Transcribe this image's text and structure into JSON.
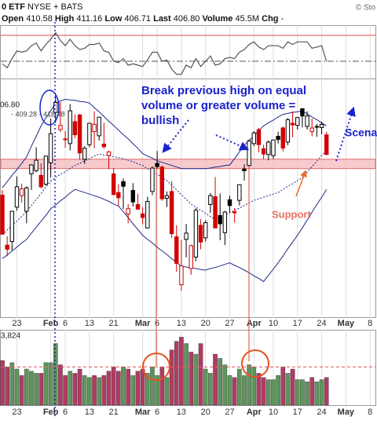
{
  "header": {
    "symbol": "0 ETF",
    "exchange": "NYSE + BATS",
    "copyright": "© Sto",
    "quote": [
      {
        "label": "Open",
        "value": "410.58"
      },
      {
        "label": "High",
        "value": "411.16"
      },
      {
        "label": "Low",
        "value": "406.71"
      },
      {
        "label": "Last",
        "value": "406.80"
      },
      {
        "label": "Volume",
        "value": "45.5M"
      },
      {
        "label": "Chg",
        "value": "-"
      }
    ]
  },
  "chart_data": {
    "type": "candlestick",
    "categories": [
      null,
      null,
      null,
      "23",
      null,
      null,
      null,
      null,
      null,
      null,
      "Feb",
      null,
      null,
      "6",
      null,
      null,
      null,
      null,
      "13",
      null,
      null,
      null,
      null,
      "21",
      null,
      null,
      null,
      null,
      null,
      "Mar",
      null,
      null,
      "6",
      null,
      null,
      null,
      null,
      "13",
      null,
      null,
      null,
      null,
      "20",
      null,
      null,
      null,
      null,
      "27",
      null,
      null,
      null,
      null,
      "Apr",
      null,
      null,
      null,
      "10",
      null,
      null,
      null,
      null,
      "17",
      null,
      null,
      null,
      null,
      "24",
      null,
      null,
      null,
      null,
      "May",
      null,
      null,
      null,
      null,
      "8"
    ],
    "open": [
      399.0,
      389.4,
      390.1,
      396.7,
      398.9,
      395.9,
      403.1,
      403.7,
      402.8,
      401.1,
      405.2,
      414.9,
      411.6,
      409.8,
      408.9,
      413.1,
      414.4,
      405.9,
      408.7,
      411.2,
      410.4,
      408.8,
      406.6,
      403.1,
      399.5,
      401.6,
      395.4,
      399.9,
      397.2,
      395.4,
      392.7,
      399.7,
      405.1,
      404.4,
      398.4,
      399.7,
      390.99,
      381.8,
      390.5,
      384.9,
      387.1,
      393.2,
      390.8,
      397.2,
      398.7,
      395.1,
      391.8,
      398.1,
      395.8,
      398.0,
      404.0,
      404.7,
      408.9,
      411.6,
      407.9,
      406.8,
      406.6,
      410.3,
      411.9,
      409.2,
      412.8,
      412.4,
      415.6,
      412.2,
      411.2,
      412.2,
      411.99,
      410.58,
      null,
      null,
      null,
      null,
      null,
      null,
      null,
      null,
      null
    ],
    "high": [
      400.0,
      391.1,
      396.0,
      402.6,
      401.2,
      400.7,
      404.9,
      408.2,
      405.1,
      406.5,
      413.7,
      418.3,
      416.9,
      411.3,
      416.5,
      414.5,
      414.6,
      408.4,
      412.9,
      415.1,
      414.0,
      412.9,
      407.5,
      404.2,
      401.1,
      402.2,
      397.3,
      401.3,
      399.3,
      396.7,
      398.7,
      404.5,
      407.5,
      404.7,
      399.7,
      401.7,
      393.2,
      390.4,
      393.45,
      389.5,
      396.5,
      394.4,
      394.2,
      399.4,
      402.5,
      399.3,
      396.0,
      398.9,
      396.5,
      401.0,
      404.9,
      409.7,
      411.3,
      411.9,
      408.7,
      409.5,
      409.7,
      411.2,
      412.2,
      413.8,
      415.1,
      414.0,
      415.7,
      415.1,
      413.7,
      412.7,
      413.1,
      411.16,
      null,
      null,
      null,
      null,
      null,
      null,
      null,
      null,
      null
    ],
    "low": [
      391.4,
      387.3,
      388.4,
      396.0,
      397.6,
      393.6,
      400.0,
      403.4,
      400.3,
      400.8,
      402.4,
      412.9,
      411.1,
      408.1,
      407.6,
      409.9,
      405.8,
      405.0,
      408.2,
      408.0,
      409.5,
      407.9,
      404.0,
      399.1,
      397.0,
      396.3,
      393.6,
      396.8,
      396.2,
      393.4,
      392.6,
      399.0,
      404.1,
      397.9,
      396.7,
      390.8,
      384.3,
      380.65,
      387.05,
      383.7,
      386.3,
      388.6,
      390.1,
      395.6,
      392.6,
      390.35,
      389.4,
      395.6,
      393.7,
      397.0,
      401.8,
      404.5,
      408.4,
      407.2,
      405.9,
      405.7,
      405.97,
      408.9,
      407.4,
      408.6,
      410.1,
      411.6,
      412.0,
      411.6,
      410.3,
      410.2,
      410.7,
      406.71,
      null,
      null,
      null,
      null,
      null,
      null,
      null,
      null,
      null
    ],
    "close": [
      391.5,
      388.6,
      395.9,
      400.6,
      400.2,
      400.4,
      404.8,
      405.7,
      400.6,
      406.5,
      410.8,
      416.8,
      412.4,
      409.8,
      415.2,
      410.6,
      407.1,
      408.0,
      412.8,
      412.6,
      413.98,
      408.3,
      407.3,
      399.1,
      398.5,
      400.7,
      396.4,
      397.7,
      396.3,
      394.7,
      397.8,
      404.2,
      404.5,
      398.3,
      398.9,
      391.6,
      385.9,
      385.4,
      391.7,
      389.3,
      396.1,
      389.99,
      393.7,
      398.9,
      392.7,
      393.5,
      395.75,
      397.0,
      395.6,
      401.0,
      403.7,
      409.4,
      410.95,
      408.7,
      406.9,
      409.2,
      409.6,
      409.7,
      408.05,
      413.5,
      412.5,
      413.9,
      414.2,
      414.2,
      411.9,
      412.2,
      412.6,
      406.8,
      null,
      null,
      null,
      null,
      null,
      null,
      null,
      null,
      null
    ],
    "upper_band": [
      400.4,
      401.6,
      402.8,
      403.9,
      405.1,
      406.3,
      408.4,
      410.3,
      412.3,
      413.8,
      415.2,
      416.7,
      417.1,
      417.4,
      417.3,
      417.2,
      417.0,
      416.9,
      416.7,
      415.8,
      415.0,
      414.1,
      413.2,
      412.4,
      411.5,
      410.6,
      409.8,
      408.9,
      408.0,
      407.0,
      406.5,
      406.1,
      405.6,
      405.3,
      405.0,
      404.7,
      404.4,
      404.1,
      404.1,
      404.1,
      404.1,
      404.1,
      404.1,
      404.2,
      404.4,
      404.5,
      404.7,
      404.8,
      406.0,
      407.3,
      408.6,
      409.5,
      410.4,
      411.4,
      412.3,
      412.9,
      413.4,
      414.0,
      414.5,
      414.7,
      414.9,
      415.0,
      415.2,
      414.6,
      414.0,
      413.5,
      412.9,
      412.3,
      null,
      null,
      null,
      null,
      null,
      null,
      null,
      null,
      null
    ],
    "middle_band": [
      391.4,
      392.3,
      393.2,
      394.0,
      394.9,
      395.8,
      397.0,
      398.2,
      399.3,
      400.5,
      401.7,
      402.4,
      403.0,
      403.5,
      404.1,
      404.7,
      405.1,
      405.6,
      406.0,
      406.5,
      406.9,
      406.7,
      406.6,
      406.4,
      406.2,
      406.0,
      405.7,
      405.4,
      405.0,
      404.7,
      404.1,
      403.5,
      403.0,
      402.4,
      401.8,
      400.9,
      400.0,
      399.1,
      398.2,
      397.3,
      396.7,
      396.1,
      395.5,
      394.9,
      394.3,
      394.7,
      395.2,
      395.6,
      396.1,
      396.5,
      397.0,
      397.5,
      398.0,
      398.3,
      398.6,
      398.9,
      399.2,
      399.5,
      400.1,
      400.7,
      401.2,
      401.8,
      402.4,
      403.4,
      404.5,
      405.5,
      406.6,
      407.6,
      null,
      null,
      null,
      null,
      null,
      null,
      null,
      null,
      null
    ],
    "lower_band": [
      386.8,
      387.5,
      388.3,
      389.0,
      389.8,
      390.5,
      391.7,
      392.8,
      394.0,
      395.1,
      396.4,
      397.1,
      397.9,
      398.6,
      399.4,
      400.1,
      399.8,
      399.5,
      399.2,
      398.9,
      398.6,
      398.2,
      397.8,
      397.3,
      396.9,
      395.8,
      394.7,
      393.5,
      392.4,
      391.3,
      390.5,
      389.8,
      389.0,
      388.3,
      387.6,
      386.8,
      386.1,
      385.3,
      385.2,
      385.0,
      384.9,
      384.7,
      384.6,
      384.9,
      385.1,
      385.4,
      385.7,
      386.0,
      385.5,
      385.1,
      384.6,
      384.1,
      383.5,
      383.0,
      382.4,
      383.6,
      384.8,
      386.0,
      387.3,
      388.7,
      390.0,
      391.3,
      392.7,
      394.2,
      395.7,
      397.2,
      398.6,
      400.1,
      null,
      null,
      null,
      null,
      null,
      null,
      null,
      null,
      null
    ],
    "ylim": [
      375.4,
      421.4
    ],
    "support_zone": [
      404.1,
      405.9
    ],
    "price_label": "06.80",
    "band_label": "- 409.28 - 418.48",
    "colors": {
      "up": "#000000",
      "down": "#d40000",
      "band": "#1c2a8c",
      "rsi": "#555555",
      "rsi_upper": "#e04848",
      "volume_up": "#5e955c",
      "volume_down": "#b23b63",
      "support": "#f4b8bc",
      "average": "#e0606a"
    },
    "rsi": {
      "values": [
        48,
        45,
        52,
        58,
        57,
        58,
        62,
        64,
        58,
        63,
        67,
        72,
        66,
        62,
        67,
        62,
        59,
        60,
        63,
        63,
        64,
        58,
        57,
        50,
        49,
        52,
        47,
        48,
        47,
        46,
        51,
        57,
        57,
        50,
        51,
        44,
        40,
        40,
        47,
        45,
        52,
        46,
        50,
        54,
        47,
        48,
        52,
        53,
        52,
        57,
        59,
        63,
        65,
        61,
        59,
        62,
        62,
        62,
        60,
        65,
        63,
        65,
        65,
        65,
        60,
        61,
        62,
        50,
        null,
        null,
        null,
        null,
        null,
        null,
        null,
        null,
        null
      ],
      "ylim": [
        36.7,
        77.9
      ],
      "levels": [
        70,
        50
      ]
    },
    "volume": {
      "values": [
        105,
        90,
        100,
        85,
        70,
        85,
        80,
        75,
        75,
        100,
        100,
        145,
        95,
        70,
        80,
        75,
        85,
        70,
        65,
        70,
        65,
        70,
        80,
        90,
        80,
        90,
        85,
        70,
        80,
        85,
        75,
        90,
        70,
        90,
        65,
        130,
        150,
        160,
        145,
        125,
        120,
        145,
        85,
        75,
        120,
        110,
        95,
        70,
        65,
        85,
        70,
        95,
        90,
        75,
        65,
        60,
        60,
        70,
        90,
        75,
        85,
        60,
        60,
        55,
        65,
        55,
        60,
        65,
        null,
        null,
        null,
        null,
        null,
        null,
        null,
        null,
        null
      ],
      "ylim": [
        0,
        170
      ],
      "average": 90,
      "label": "3,824"
    },
    "annotations": {
      "break_note": "Break previous high on equal volume or greater volume = bullish",
      "support": "Support",
      "scenario": "Scena"
    }
  }
}
